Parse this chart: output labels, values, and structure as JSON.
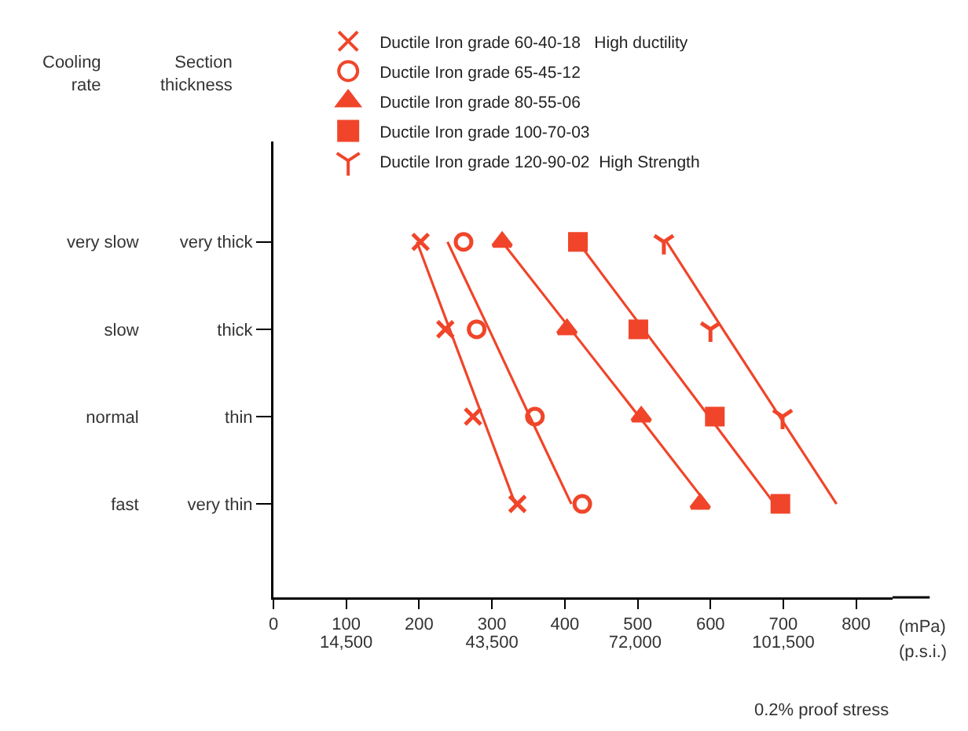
{
  "chart_data": {
    "type": "scatter",
    "orientation": "horizontal",
    "ylabel": "Cooling rate",
    "y2label": "Section thickness",
    "xlabel": "(mPa)",
    "x2label": "(p.s.i.)",
    "annotations": [
      "0.2% proof stress"
    ],
    "categories": [
      "very slow",
      "slow",
      "normal",
      "fast"
    ],
    "y2_categories": [
      "very thick",
      "thick",
      "thin",
      "very thin"
    ],
    "xlim": [
      0,
      850
    ],
    "xticks": [
      0,
      100,
      200,
      300,
      400,
      500,
      600,
      700,
      800
    ],
    "x2lim": [
      0,
      123250
    ],
    "x2ticks": [
      {
        "value": 14500,
        "label": "14,500"
      },
      {
        "value": 43500,
        "label": "43,500"
      },
      {
        "value": 72000,
        "label": "72,000"
      },
      {
        "value": 101500,
        "label": "101,500"
      }
    ],
    "grid": false,
    "legend": "top",
    "series": [
      {
        "name": "Ductile Iron grade 60-40-18   High ductility",
        "color": "#f0452a",
        "marker": "cross",
        "values": [
          202,
          236,
          274,
          335
        ]
      },
      {
        "name": "Ductile Iron grade 65-45-12",
        "color": "#f0452a",
        "marker": "circle",
        "values": [
          261,
          279,
          359,
          424
        ]
      },
      {
        "name": "Ductile Iron grade 80-55-06",
        "color": "#f0452a",
        "marker": "triangle",
        "values": [
          314,
          403,
          505,
          586
        ]
      },
      {
        "name": "Ductile Iron grade 100-70-03",
        "color": "#f0452a",
        "marker": "square",
        "values": [
          418,
          501,
          606,
          696
        ]
      },
      {
        "name": "Ductile Iron grade 120-90-02  High Strength",
        "color": "#f0452a",
        "values": [
          536,
          600,
          699,
          null
        ]
      },
      {
        "type": "line",
        "color": "#f0452a",
        "line_style": "solid",
        "values": [
          197,
          242,
          287,
          332
        ]
      },
      {
        "type": "line",
        "color": "#f0452a",
        "line_style": "solid",
        "values": [
          239,
          296,
          352,
          409
        ]
      },
      {
        "type": "line",
        "color": "#f0452a",
        "line_style": "solid",
        "values": [
          314,
          408,
          502,
          595
        ]
      },
      {
        "type": "line",
        "color": "#f0452a",
        "line_style": "solid",
        "values": [
          418,
          508,
          598,
          688
        ]
      },
      {
        "type": "line",
        "color": "#f0452a",
        "line_style": "solid",
        "values": [
          540,
          617,
          695,
          773
        ]
      }
    ]
  }
}
